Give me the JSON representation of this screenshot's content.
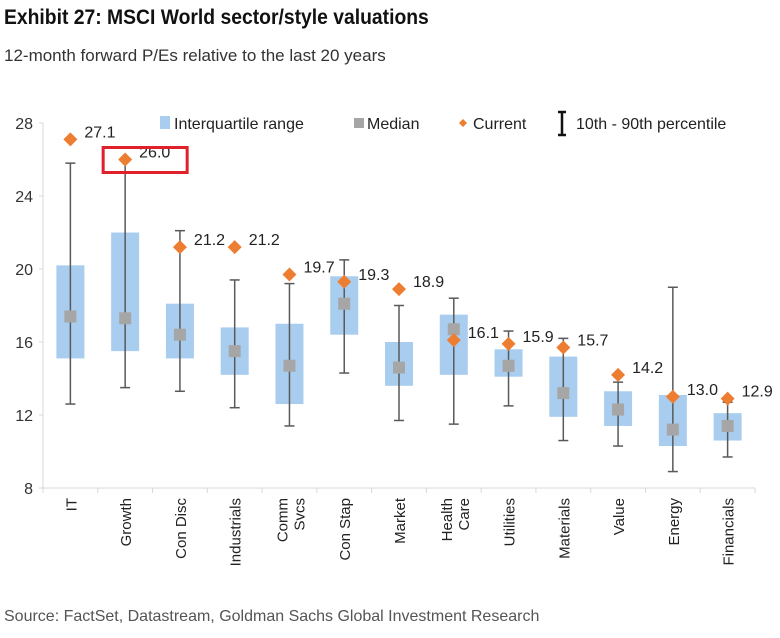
{
  "title": "Exhibit 27: MSCI World sector/style valuations",
  "subtitle": "12-month forward P/Es relative to the last 20 years",
  "source": "Source: FactSet, Datastream, Goldman Sachs Global Investment Research",
  "colors": {
    "iqr": "#a9cdef",
    "median": "#a6a6a6",
    "current": "#ed7d31",
    "whisker": "#595959",
    "highlight": "#e0202a"
  },
  "chart_data": {
    "type": "box",
    "ylim": [
      8,
      28
    ],
    "yticks": [
      8,
      12,
      16,
      20,
      24,
      28
    ],
    "grid": false,
    "legend": {
      "placement": "top",
      "entries": [
        "Interquartile range",
        "Median",
        "Current",
        "10th - 90th percentile"
      ]
    },
    "highlighted_category": "Growth",
    "categories": [
      "IT",
      "Growth",
      "Con Disc",
      "Industrials",
      "Comm Svcs",
      "Con Stap",
      "Market",
      "Health Care",
      "Utilities",
      "Materials",
      "Value",
      "Energy",
      "Financials"
    ],
    "series": [
      {
        "name": "Current",
        "values": [
          27.1,
          26.0,
          21.2,
          21.2,
          19.7,
          19.3,
          18.9,
          16.1,
          15.9,
          15.7,
          14.2,
          13.0,
          12.9
        ],
        "labels": [
          "27.1",
          "26.0",
          "21.2",
          "21.2",
          "19.7",
          "19.3",
          "18.9",
          "16.1",
          "15.9",
          "15.7",
          "14.2",
          "13.0",
          "12.9"
        ]
      },
      {
        "name": "Median",
        "values": [
          17.4,
          17.3,
          16.4,
          15.5,
          14.7,
          18.1,
          14.6,
          16.7,
          14.7,
          13.2,
          12.3,
          11.2,
          11.4
        ]
      },
      {
        "name": "Interquartile range",
        "low": [
          15.1,
          15.5,
          15.1,
          14.2,
          12.6,
          16.4,
          13.6,
          14.2,
          14.1,
          11.9,
          11.4,
          10.3,
          10.6
        ],
        "high": [
          20.2,
          22.0,
          18.1,
          16.8,
          17.0,
          19.6,
          16.0,
          17.5,
          15.6,
          15.2,
          13.3,
          13.1,
          12.1
        ]
      },
      {
        "name": "10th - 90th percentile",
        "low": [
          12.6,
          13.5,
          13.3,
          12.4,
          11.4,
          14.3,
          11.7,
          11.5,
          12.5,
          10.6,
          10.3,
          8.9,
          9.7
        ],
        "high": [
          25.8,
          26.0,
          22.1,
          19.4,
          19.2,
          20.5,
          18.0,
          18.4,
          16.6,
          16.2,
          13.8,
          19.0,
          12.7
        ]
      }
    ]
  }
}
